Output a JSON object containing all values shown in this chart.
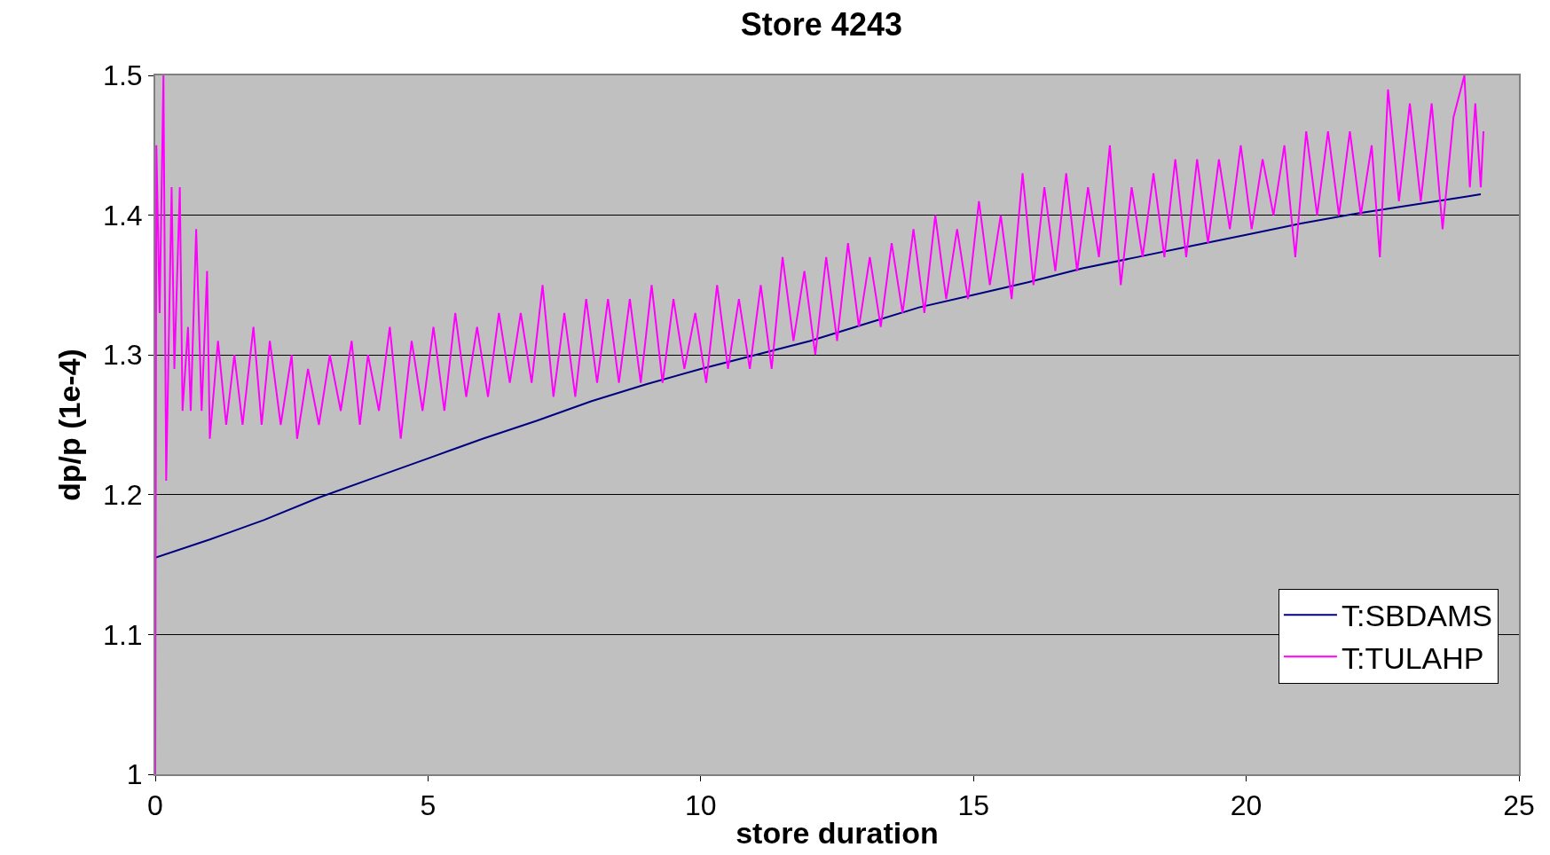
{
  "chart_data": {
    "type": "line",
    "title": "Store 4243",
    "xlabel": "store duration",
    "ylabel": "dp/p (1e-4)",
    "xlim": [
      0,
      25
    ],
    "xticks": [
      0,
      5,
      10,
      15,
      20,
      25
    ],
    "ylim": [
      1,
      1.5
    ],
    "yticks": [
      1,
      1.1,
      1.2,
      1.3,
      1.4,
      1.5
    ],
    "grid": "y",
    "legend": "bottom right",
    "marker": "none",
    "line_style": "solid",
    "series": [
      {
        "name": "T:SBDAMS",
        "color": "#000080",
        "x": [
          0,
          1,
          2,
          3,
          4,
          5,
          6,
          7,
          8,
          9,
          10,
          11,
          12,
          13,
          14,
          15,
          16,
          17,
          18,
          19,
          20,
          21,
          22,
          23,
          24,
          24.3
        ],
        "values": [
          1.155,
          1.168,
          1.182,
          1.198,
          1.212,
          1.226,
          1.24,
          1.253,
          1.267,
          1.279,
          1.29,
          1.3,
          1.31,
          1.322,
          1.334,
          1.343,
          1.352,
          1.362,
          1.37,
          1.378,
          1.386,
          1.394,
          1.401,
          1.407,
          1.413,
          1.415
        ]
      },
      {
        "name": "T:TULAHP",
        "color": "#ff00ff",
        "x": [
          0,
          0.02,
          0.08,
          0.15,
          0.2,
          0.3,
          0.35,
          0.45,
          0.5,
          0.6,
          0.65,
          0.75,
          0.85,
          0.95,
          1.0,
          1.15,
          1.3,
          1.45,
          1.6,
          1.8,
          1.95,
          2.1,
          2.3,
          2.5,
          2.6,
          2.8,
          3.0,
          3.2,
          3.4,
          3.6,
          3.75,
          3.9,
          4.1,
          4.3,
          4.5,
          4.7,
          4.9,
          5.1,
          5.3,
          5.5,
          5.7,
          5.9,
          6.1,
          6.3,
          6.5,
          6.7,
          6.9,
          7.1,
          7.3,
          7.5,
          7.7,
          7.9,
          8.1,
          8.3,
          8.5,
          8.7,
          8.9,
          9.1,
          9.3,
          9.5,
          9.7,
          9.9,
          10.1,
          10.3,
          10.5,
          10.7,
          10.9,
          11.1,
          11.3,
          11.5,
          11.7,
          11.9,
          12.1,
          12.3,
          12.5,
          12.7,
          12.9,
          13.1,
          13.3,
          13.5,
          13.7,
          13.9,
          14.1,
          14.3,
          14.5,
          14.7,
          14.9,
          15.1,
          15.3,
          15.5,
          15.7,
          15.9,
          16.1,
          16.3,
          16.5,
          16.7,
          16.9,
          17.1,
          17.3,
          17.5,
          17.7,
          17.9,
          18.1,
          18.3,
          18.5,
          18.7,
          18.9,
          19.1,
          19.3,
          19.5,
          19.7,
          19.9,
          20.1,
          20.3,
          20.5,
          20.7,
          20.9,
          21.1,
          21.3,
          21.5,
          21.7,
          21.9,
          22.1,
          22.3,
          22.45,
          22.6,
          22.8,
          23.0,
          23.2,
          23.4,
          23.6,
          23.8,
          24.0,
          24.1,
          24.2,
          24.3,
          24.35
        ],
        "values": [
          1.0,
          1.45,
          1.33,
          1.5,
          1.21,
          1.42,
          1.29,
          1.42,
          1.26,
          1.32,
          1.26,
          1.39,
          1.26,
          1.36,
          1.24,
          1.31,
          1.25,
          1.3,
          1.25,
          1.32,
          1.25,
          1.31,
          1.25,
          1.3,
          1.24,
          1.29,
          1.25,
          1.3,
          1.26,
          1.31,
          1.25,
          1.3,
          1.26,
          1.32,
          1.24,
          1.31,
          1.26,
          1.32,
          1.26,
          1.33,
          1.27,
          1.32,
          1.27,
          1.33,
          1.28,
          1.33,
          1.28,
          1.35,
          1.27,
          1.33,
          1.27,
          1.34,
          1.28,
          1.34,
          1.28,
          1.34,
          1.28,
          1.35,
          1.28,
          1.34,
          1.29,
          1.33,
          1.28,
          1.35,
          1.29,
          1.34,
          1.29,
          1.35,
          1.29,
          1.37,
          1.31,
          1.36,
          1.3,
          1.37,
          1.31,
          1.38,
          1.32,
          1.37,
          1.32,
          1.38,
          1.33,
          1.39,
          1.33,
          1.4,
          1.34,
          1.39,
          1.34,
          1.41,
          1.35,
          1.4,
          1.34,
          1.43,
          1.35,
          1.42,
          1.36,
          1.43,
          1.36,
          1.42,
          1.37,
          1.45,
          1.35,
          1.42,
          1.37,
          1.43,
          1.37,
          1.44,
          1.37,
          1.44,
          1.38,
          1.44,
          1.39,
          1.45,
          1.39,
          1.44,
          1.4,
          1.45,
          1.37,
          1.46,
          1.4,
          1.46,
          1.4,
          1.46,
          1.4,
          1.45,
          1.37,
          1.49,
          1.41,
          1.48,
          1.41,
          1.48,
          1.39,
          1.47,
          1.5,
          1.42,
          1.48,
          1.42,
          1.46
        ]
      }
    ]
  }
}
